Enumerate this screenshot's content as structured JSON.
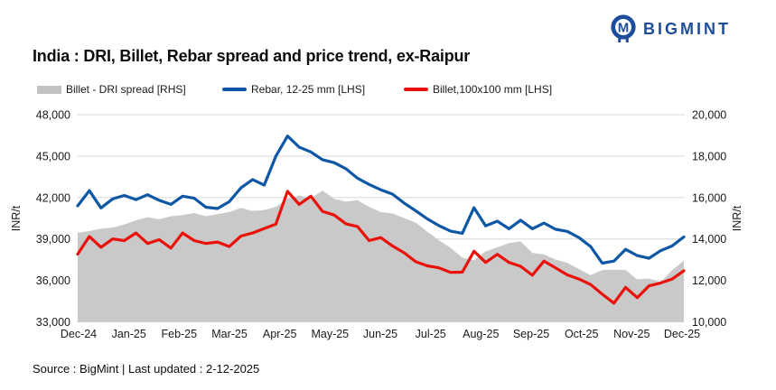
{
  "header": {
    "brand": "BIGMINT",
    "brand_color": "#1e4e9b",
    "logo_icon": "bigmint-monogram-icon"
  },
  "title": "India : DRI, Billet, Rebar spread and price trend, ex-Raipur",
  "legend": [
    {
      "label": "Billet - DRI spread  [RHS]",
      "swatch": "area",
      "color": "#c2c2c2"
    },
    {
      "label": "Rebar, 12-25 mm [LHS]",
      "swatch": "line",
      "color": "#0e57a5"
    },
    {
      "label": "Billet,100x100 mm [LHS]",
      "swatch": "line",
      "color": "#e8120b"
    }
  ],
  "source_note": "Source : BigMint | Last updated : 2-12-2025",
  "chart_data": {
    "type": "line",
    "subtype": "two lines on left axis + one area series on right axis, weekly data Dec-24 to Dec-25",
    "title": "India : DRI, Billet, Rebar spread and price trend, ex-Raipur",
    "x_tick_labels": [
      "Dec-24",
      "Jan-25",
      "Feb-25",
      "Mar-25",
      "Apr-25",
      "May-25",
      "Jun-25",
      "Jul-25",
      "Aug-25",
      "Sep-25",
      "Oct-25",
      "Nov-25",
      "Dec-25"
    ],
    "axis_left": {
      "label": "INR/t",
      "range": [
        33000,
        48000
      ],
      "tick_values": [
        48000,
        45000,
        42000,
        39000,
        36000,
        33000
      ],
      "tick_labels": [
        "48,000",
        "45,000",
        "42,000",
        "39,000",
        "36,000",
        "33,000"
      ]
    },
    "axis_right": {
      "label": "INR/t",
      "range": [
        10000,
        20000
      ],
      "tick_values": [
        20000,
        18000,
        16000,
        14000,
        12000,
        10000
      ],
      "tick_labels": [
        "20,000",
        "18,000",
        "16,000",
        "14,000",
        "12,000",
        "10,000"
      ]
    },
    "gridline_color": "#d9d9d9",
    "legend_position": "top",
    "series": [
      {
        "name": "Billet - DRI spread [RHS]",
        "axis": "right",
        "type": "area",
        "color": "#c9c9c9",
        "values": [
          14300,
          14380,
          14500,
          14550,
          14700,
          14900,
          15050,
          14950,
          15100,
          15150,
          15250,
          15100,
          15200,
          15300,
          15500,
          15350,
          15400,
          15550,
          15940,
          16100,
          15950,
          16340,
          15940,
          15800,
          15870,
          15550,
          15300,
          15230,
          15010,
          14790,
          14350,
          13930,
          13560,
          13100,
          12970,
          13400,
          13600,
          13800,
          13880,
          13330,
          13260,
          13000,
          12850,
          12550,
          12250,
          12500,
          12520,
          12500,
          12050,
          12090,
          11900,
          12500,
          12950
        ]
      },
      {
        "name": "Rebar, 12-25 mm [LHS]",
        "axis": "left",
        "type": "line",
        "color": "#0e57a5",
        "values": [
          41400,
          42500,
          41250,
          41900,
          42150,
          41850,
          42200,
          41800,
          41500,
          42100,
          41950,
          41300,
          41200,
          41700,
          42700,
          43300,
          42900,
          45000,
          46450,
          45650,
          45300,
          44740,
          44520,
          44090,
          43400,
          42950,
          42560,
          42250,
          41600,
          41040,
          40450,
          39960,
          39560,
          39410,
          41260,
          39950,
          40290,
          39740,
          40360,
          39740,
          40150,
          39700,
          39550,
          39100,
          38450,
          37250,
          37400,
          38250,
          37800,
          37600,
          38150,
          38500,
          39150
        ]
      },
      {
        "name": "Billet,100x100 mm [LHS]",
        "axis": "left",
        "type": "line",
        "color": "#e8120b",
        "values": [
          37900,
          39180,
          38400,
          39000,
          38880,
          39430,
          38670,
          38950,
          38340,
          39430,
          38880,
          38670,
          38780,
          38450,
          39210,
          39430,
          39760,
          40080,
          42450,
          41500,
          42100,
          41000,
          40730,
          40100,
          39900,
          38880,
          39100,
          38500,
          38000,
          37350,
          37050,
          36910,
          36580,
          36600,
          38110,
          37300,
          37890,
          37300,
          37020,
          36370,
          37400,
          36900,
          36400,
          36100,
          35700,
          35000,
          34350,
          35500,
          34750,
          35600,
          35820,
          36100,
          36700
        ]
      }
    ]
  }
}
